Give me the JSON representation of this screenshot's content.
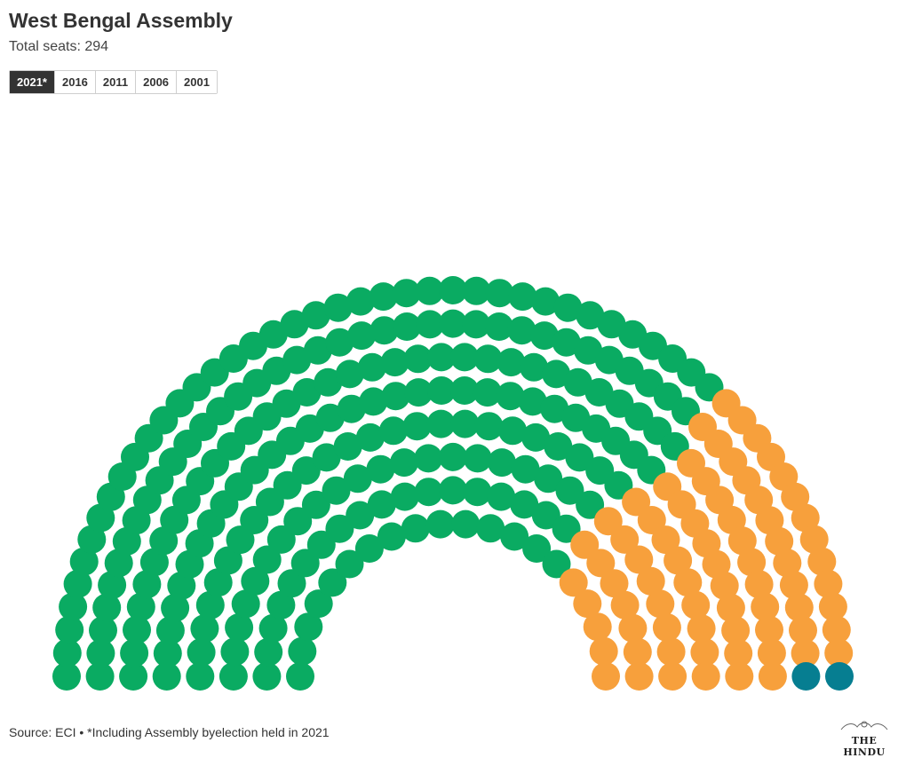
{
  "header": {
    "title": "West Bengal Assembly",
    "subtitle": "Total seats: 294"
  },
  "tabs": [
    {
      "label": "2021*",
      "active": true
    },
    {
      "label": "2016",
      "active": false
    },
    {
      "label": "2011",
      "active": false
    },
    {
      "label": "2006",
      "active": false
    },
    {
      "label": "2001",
      "active": false
    }
  ],
  "footer": {
    "source": "Source: ECI • *Including Assembly byelection held in 2021",
    "brand": "THE HINDU"
  },
  "chart_data": {
    "type": "parliament",
    "title": "West Bengal Assembly",
    "total_seats": 294,
    "year": "2021*",
    "series": [
      {
        "name": "Green",
        "color": "#0aab62",
        "seats": 217
      },
      {
        "name": "Orange",
        "color": "#f7a03c",
        "seats": 75
      },
      {
        "name": "Teal",
        "color": "#067e91",
        "seats": 2
      }
    ],
    "note": "*Including Assembly byelection held in 2021"
  }
}
